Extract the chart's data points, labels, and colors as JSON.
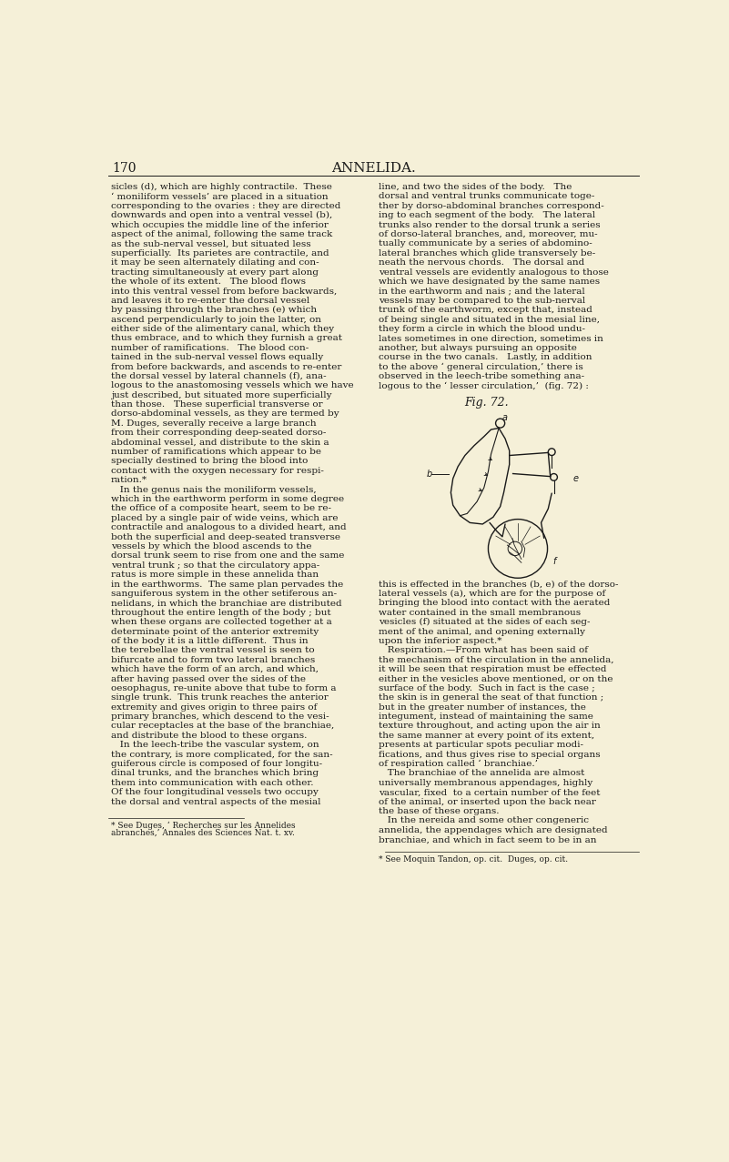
{
  "background_color": "#f5f0d8",
  "page_number": "170",
  "header_title": "ANNELIDA.",
  "fig_label": "Fig. 72.",
  "text_color": "#1a1a1a",
  "left_column_text": [
    "sicles (d), which are highly contractile.  These",
    "‘ moniliform vessels’ are placed in a situation",
    "corresponding to the ovaries : they are directed",
    "downwards and open into a ventral vessel (b),",
    "which occupies the middle line of the inferior",
    "aspect of the animal, following the same track",
    "as the sub-nerval vessel, but situated less",
    "superficially.  Its parietes are contractile, and",
    "it may be seen alternately dilating and con-",
    "tracting simultaneously at every part along",
    "the whole of its extent.   The blood flows",
    "into this ventral vessel from before backwards,",
    "and leaves it to re-enter the dorsal vessel",
    "by passing through the branches (e) which",
    "ascend perpendicularly to join the latter, on",
    "either side of the alimentary canal, which they",
    "thus embrace, and to which they furnish a great",
    "number of ramifications.   The blood con-",
    "tained in the sub-nerval vessel flows equally",
    "from before backwards, and ascends to re-enter",
    "the dorsal vessel by lateral channels (f), ana-",
    "logous to the anastomosing vessels which we have",
    "just described, but situated more superficially",
    "than those.   These superficial transverse or",
    "dorso-abdominal vessels, as they are termed by",
    "M. Duges, severally receive a large branch",
    "from their corresponding deep-seated dorso-",
    "abdominal vessel, and distribute to the skin a",
    "number of ramifications which appear to be",
    "specially destined to bring the blood into",
    "contact with the oxygen necessary for respi-",
    "ration.*",
    "   In the genus nais the moniliform vessels,",
    "which in the earthworm perform in some degree",
    "the office of a composite heart, seem to be re-",
    "placed by a single pair of wide veins, which are",
    "contractile and analogous to a divided heart, and",
    "both the superficial and deep-seated transverse",
    "vessels by which the blood ascends to the",
    "dorsal trunk seem to rise from one and the same",
    "ventral trunk ; so that the circulatory appa-",
    "ratus is more simple in these annelida than",
    "in the earthworms.  The same plan pervades the",
    "sanguiferous system in the other setiferous an-",
    "nelidans, in which the branchiae are distributed",
    "throughout the entire length of the body ; but",
    "when these organs are collected together at a",
    "determinate point of the anterior extremity",
    "of the body it is a little different.  Thus in",
    "the terebellae the ventral vessel is seen to",
    "bifurcate and to form two lateral branches",
    "which have the form of an arch, and which,",
    "after having passed over the sides of the",
    "oesophagus, re-unite above that tube to form a",
    "single trunk.  This trunk reaches the anterior",
    "extremity and gives origin to three pairs of",
    "primary branches, which descend to the vesi-",
    "cular receptacles at the base of the branchiae,",
    "and distribute the blood to these organs.",
    "   In the leech-tribe the vascular system, on",
    "the contrary, is more complicated, for the san-",
    "guiferous circle is composed of four longitu-",
    "dinal trunks, and the branches which bring",
    "them into communication with each other.",
    "Of the four longitudinal vessels two occupy",
    "the dorsal and ventral aspects of the mesial"
  ],
  "left_footnote_line1": "* See Duges, ‘ Recherches sur les Annelides",
  "left_footnote_line2": "abranches,’ Annales des Sciences Nat. t. xv.",
  "right_column_top_text": [
    "line, and two the sides of the body.   The",
    "dorsal and ventral trunks communicate toge-",
    "ther by dorso-abdominal branches correspond-",
    "ing to each segment of the body.   The lateral",
    "trunks also render to the dorsal trunk a series",
    "of dorso-lateral branches, and, moreover, mu-",
    "tually communicate by a series of abdomino-",
    "lateral branches which glide transversely be-",
    "neath the nervous chords.   The dorsal and",
    "ventral vessels are evidently analogous to those",
    "which we have designated by the same names",
    "in the earthworm and nais ; and the lateral",
    "vessels may be compared to the sub-nerval",
    "trunk of the earthworm, except that, instead",
    "of being single and situated in the mesial line,",
    "they form a circle in which the blood undu-",
    "lates sometimes in one direction, sometimes in",
    "another, but always pursuing an opposite",
    "course in the two canals.   Lastly, in addition",
    "to the above ‘ general circulation,’ there is",
    "observed in the leech-tribe something ana-",
    "logous to the ‘ lesser circulation,’  (fig. 72) :"
  ],
  "right_column_bottom_text": [
    "this is effected in the branches (b, e) of the dorso-",
    "lateral vessels (a), which are for the purpose of",
    "bringing the blood into contact with the aerated",
    "water contained in the small membranous",
    "vesicles (f) situated at the sides of each seg-",
    "ment of the animal, and opening externally",
    "upon the inferior aspect.*",
    "   Respiration.—From what has been said of",
    "the mechanism of the circulation in the annelida,",
    "it will be seen that respiration must be effected",
    "either in the vesicles above mentioned, or on the",
    "surface of the body.  Such in fact is the case ;",
    "the skin is in general the seat of that function ;",
    "but in the greater number of instances, the",
    "integument, instead of maintaining the same",
    "texture throughout, and acting upon the air in",
    "the same manner at every point of its extent,",
    "presents at particular spots peculiar modi-",
    "fications, and thus gives rise to special organs",
    "of respiration called ‘ branchiae.’",
    "   The branchiae of the annelida are almost",
    "universally membranous appendages, highly",
    "vascular, fixed  to a certain number of the feet",
    "of the animal, or inserted upon the back near",
    "the base of these organs.",
    "   In the nereida and some other congeneric",
    "annelida, the appendages which are designated",
    "branchiae, and which in fact seem to be in an"
  ],
  "right_footnote": "* See Moquin Tandon, op. cit.  Duges, op. cit."
}
